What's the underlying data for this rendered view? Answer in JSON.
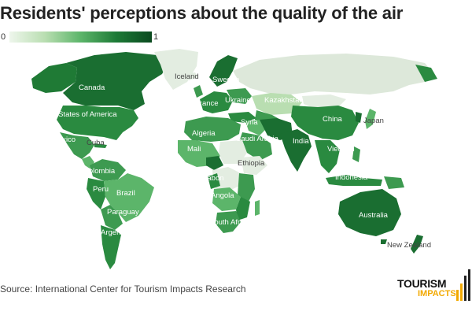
{
  "title": "Residents' perceptions about the quality of the air",
  "legend": {
    "min": "0",
    "max": "1",
    "scale_colors": [
      "#eef6ec",
      "#0b4a1f"
    ]
  },
  "source": "Source: International Center for Tourism Impacts Research",
  "logo": {
    "line1": "TOURISM",
    "line2": "IMPACTS",
    "accent_color": "#f2a900"
  },
  "countries": {
    "canada": "Canada",
    "usa": "United States of America",
    "mexico": "Mexico",
    "cuba": "Cuba",
    "colombia": "Colombia",
    "peru": "Peru",
    "brazil": "Brazil",
    "paraguay": "Paraguay",
    "argentina": "Argentina",
    "iceland": "Iceland",
    "sweden": "Sweden",
    "france": "France",
    "ukraine": "Ukraine",
    "kazakhstan": "Kazakhstan",
    "syria": "Syria",
    "algeria": "Algeria",
    "saudi_arabia": "Saudi Arabia",
    "mali": "Mali",
    "ethiopia": "Ethiopia",
    "gabon": "Gabon",
    "angola": "Angola",
    "south_africa": "South Africa",
    "china": "China",
    "japan": "Japan",
    "india": "India",
    "vietnam": "Vietnam",
    "indonesia": "Indonesia",
    "australia": "Australia",
    "new_zealand": "New Zealand"
  }
}
